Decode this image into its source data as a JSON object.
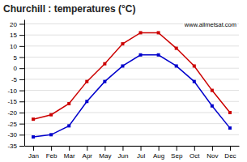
{
  "chart_data": {
    "type": "line",
    "title": "Churchill : temperatures (°C)",
    "categories": [
      "Jan",
      "Feb",
      "Mar",
      "Apr",
      "May",
      "Jun",
      "Jul",
      "Aug",
      "Sep",
      "Oct",
      "Nov",
      "Dec"
    ],
    "series": [
      {
        "color": "#cc0000",
        "values": [
          -23,
          -21,
          -16,
          -6,
          2,
          11,
          16,
          16,
          9,
          1,
          -10,
          -20
        ]
      },
      {
        "color": "#0000cc",
        "values": [
          -31,
          -30,
          -26,
          -15,
          -6,
          1,
          6,
          6,
          1,
          -6,
          -17,
          -27
        ]
      }
    ],
    "ylim": [
      -35,
      22
    ],
    "yticks": [
      -35,
      -30,
      -25,
      -20,
      -15,
      -10,
      -5,
      0,
      5,
      10,
      15,
      20
    ],
    "grid": true,
    "marker": "square",
    "annotations": [
      "www.allmetsat.com"
    ]
  }
}
